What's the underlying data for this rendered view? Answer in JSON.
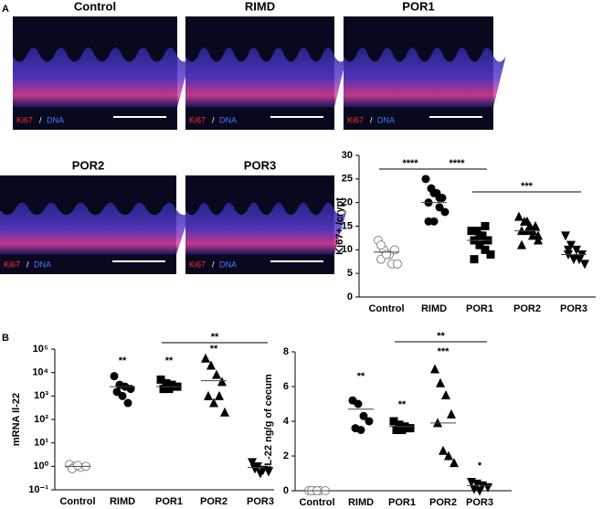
{
  "panel_labels": [
    "A",
    "B"
  ],
  "images": [
    {
      "title": "Control"
    },
    {
      "title": "RIMD"
    },
    {
      "title": "POR1"
    },
    {
      "title": "POR2"
    },
    {
      "title": "POR3"
    }
  ],
  "image_legend": {
    "marker": "Ki67",
    "separator": "/",
    "counterstain": "DNA"
  },
  "chart_data": [
    {
      "type": "dot",
      "ylabel": "Ki67+ /crypt",
      "categories": [
        "Control",
        "RIMD",
        "POR1",
        "POR2",
        "POR3"
      ],
      "markers": [
        "open-circle",
        "circle",
        "square",
        "triangle",
        "triangle-down"
      ],
      "values": [
        [
          12,
          10,
          9,
          10,
          8,
          9,
          7,
          7,
          11,
          9
        ],
        [
          25,
          23,
          22,
          21,
          20,
          22,
          19,
          18,
          16,
          16,
          21
        ],
        [
          14,
          14,
          13,
          12,
          12,
          11,
          10,
          9,
          8,
          13,
          15
        ],
        [
          17,
          16,
          15,
          15,
          14,
          14,
          13,
          12,
          11,
          16,
          14,
          13
        ],
        [
          13,
          11,
          10,
          9,
          9,
          8,
          8,
          7,
          10
        ]
      ],
      "means": [
        9.5,
        20,
        12,
        14,
        9
      ],
      "ylim": [
        0,
        30
      ],
      "yticks": [
        0,
        5,
        10,
        15,
        20,
        25,
        30
      ],
      "annotations": [
        "****",
        "****",
        "***"
      ]
    },
    {
      "type": "dot",
      "ylabel": "mRNA Il-22",
      "yscale": "log",
      "categories": [
        "Control",
        "RIMD",
        "POR1",
        "POR2",
        "POR3"
      ],
      "markers": [
        "open-circle",
        "circle",
        "square",
        "triangle",
        "triangle-down"
      ],
      "values": [
        [
          1.2,
          1,
          0.9,
          1,
          0.8,
          1.1
        ],
        [
          7000,
          3000,
          2500,
          2000,
          1500,
          1000,
          500
        ],
        [
          5000,
          3500,
          3000,
          2500,
          2000,
          2000
        ],
        [
          40000,
          20000,
          8000,
          4000,
          1000,
          500,
          1000,
          200
        ],
        [
          1.5,
          1,
          0.7,
          0.6,
          0.8,
          0.5
        ]
      ],
      "means": [
        1,
        2500,
        2500,
        4500,
        0.9
      ],
      "ylim": [
        0.1,
        100000
      ],
      "yticks": [
        {
          "value": 0.1,
          "label": "10⁻¹"
        },
        {
          "value": 1,
          "label": "10⁰"
        },
        {
          "value": 10,
          "label": "10¹"
        },
        {
          "value": 100,
          "label": "10²"
        },
        {
          "value": 1000,
          "label": "10³"
        },
        {
          "value": 10000,
          "label": "10⁴"
        },
        {
          "value": 100000,
          "label": "10⁵"
        }
      ],
      "annotations": [
        "**",
        "**",
        "**",
        "**"
      ]
    },
    {
      "type": "dot",
      "ylabel": "IL-22 ng/g of cecum",
      "categories": [
        "Control",
        "RIMD",
        "POR1",
        "POR2",
        "POR3"
      ],
      "markers": [
        "open-circle",
        "circle",
        "square",
        "triangle",
        "triangle-down"
      ],
      "values": [
        [
          0,
          0,
          0,
          0,
          0,
          0
        ],
        [
          5.2,
          5,
          4.3,
          4,
          3.6,
          3.5
        ],
        [
          4,
          3.8,
          3.7,
          3.6,
          3.5,
          3.5
        ],
        [
          7,
          6.2,
          5.5,
          4.4,
          3.9,
          2.3,
          2,
          1.6
        ],
        [
          0.5,
          0.4,
          0.3,
          0.2,
          0.1,
          0
        ]
      ],
      "means": [
        0,
        4.7,
        3.7,
        3.9,
        0.3
      ],
      "ylim": [
        0,
        8
      ],
      "yticks": [
        0,
        2,
        4,
        6,
        8
      ],
      "annotations": [
        "**",
        "**",
        "***",
        "*",
        "**"
      ]
    }
  ]
}
